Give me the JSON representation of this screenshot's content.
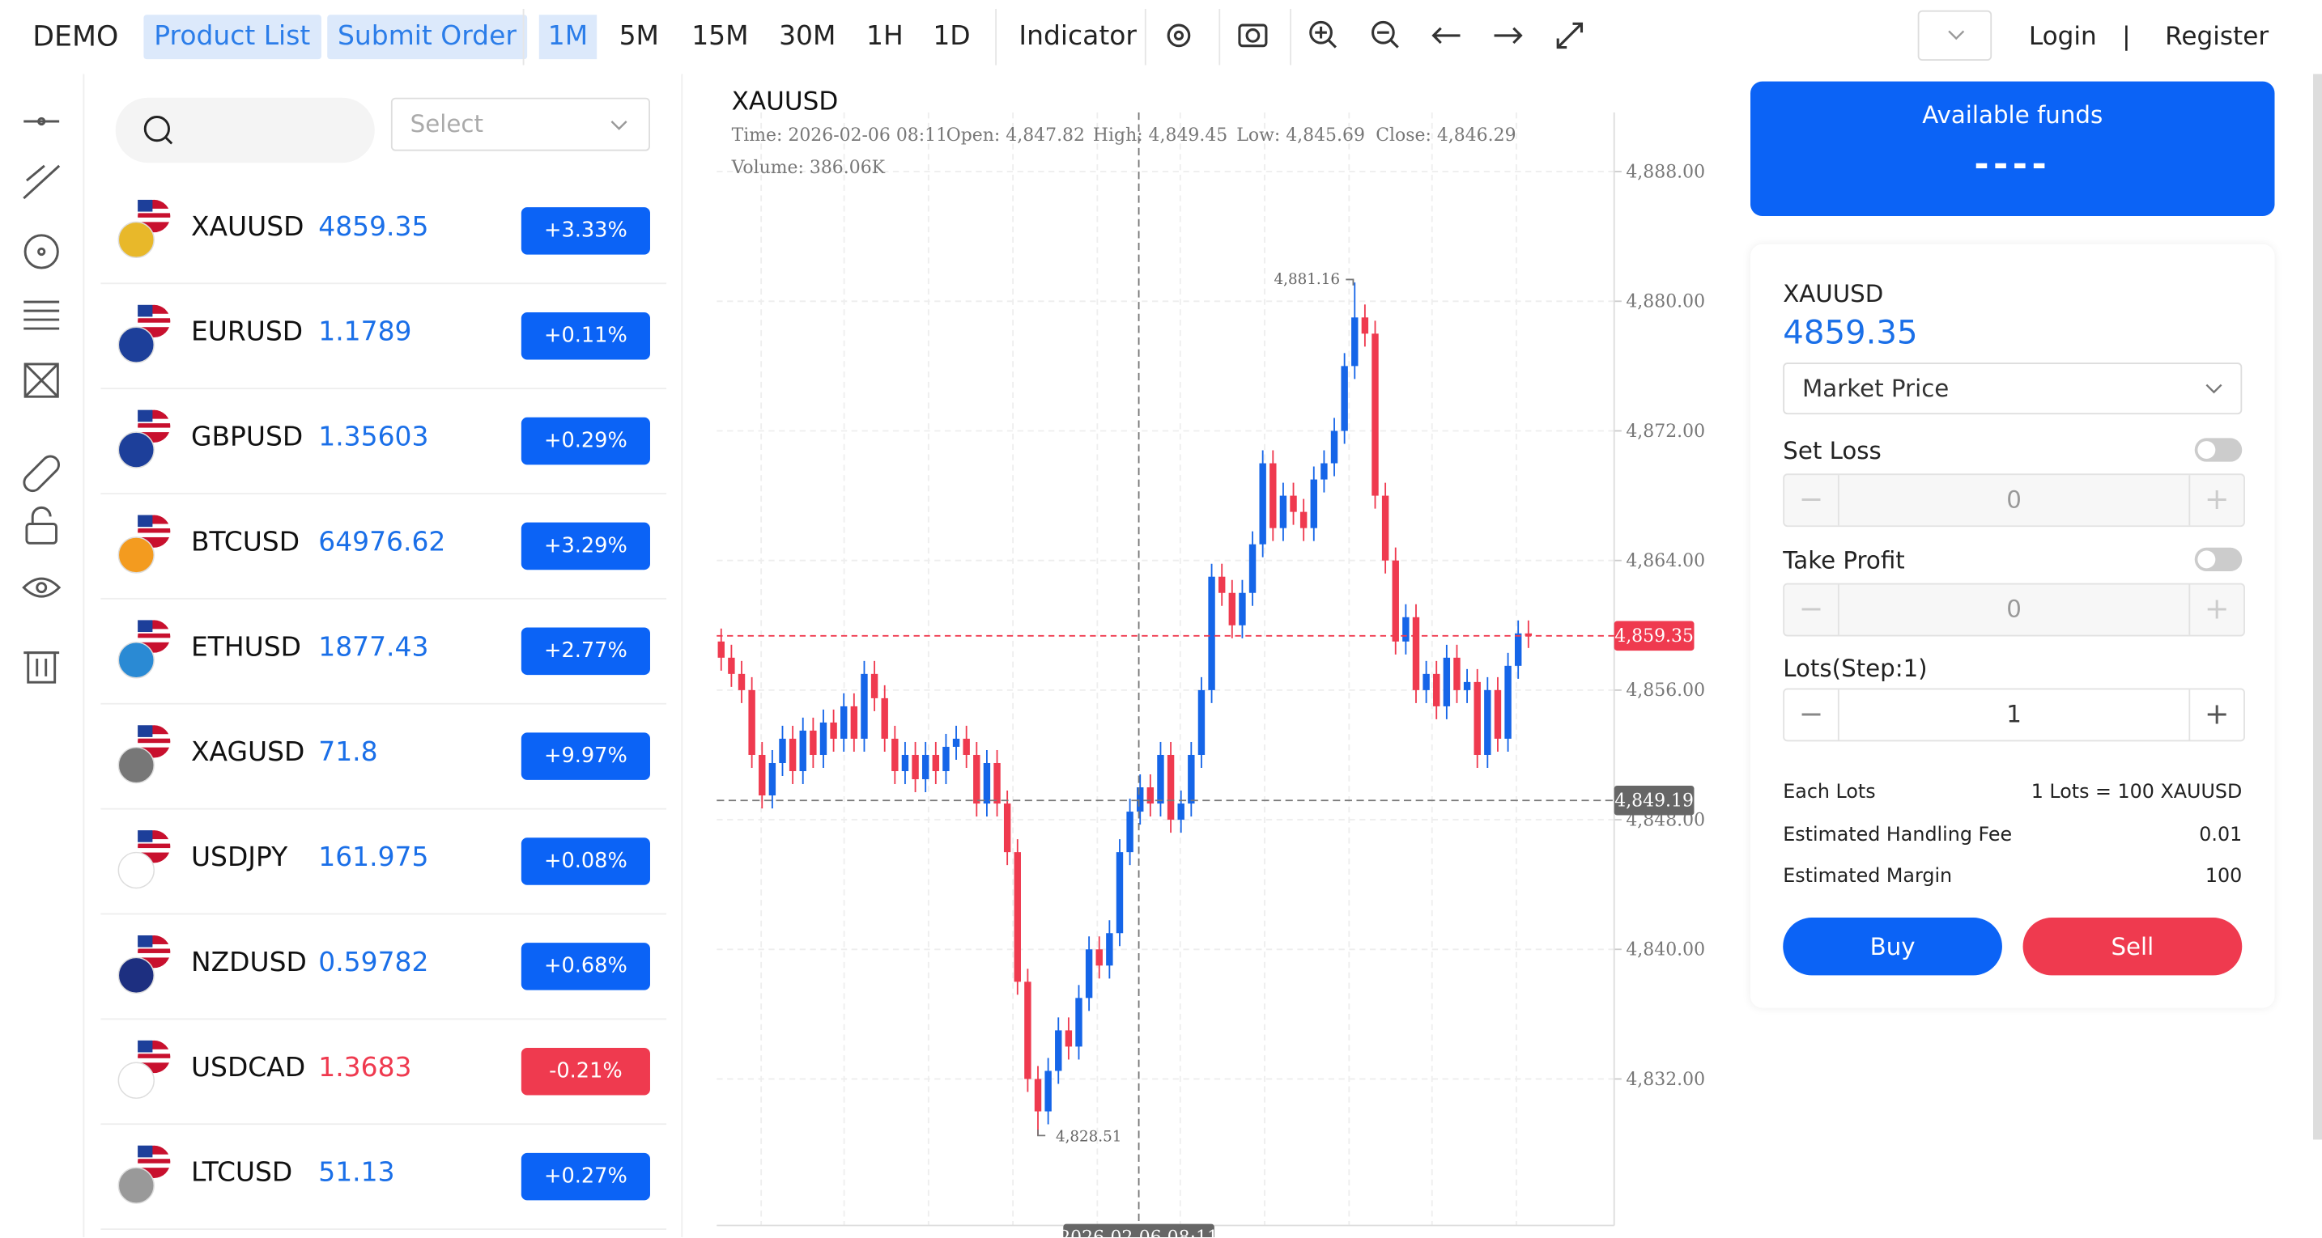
{
  "top_bar": {
    "brand": "DEMO",
    "nav": [
      "Product List",
      "Submit Order"
    ],
    "intervals": [
      "1M",
      "5M",
      "15M",
      "30M",
      "1H",
      "1D"
    ],
    "indicator": "Indicator",
    "login": "Login",
    "separator": "|",
    "register": "Register"
  },
  "search": {
    "select_placeholder": "Select"
  },
  "products": [
    {
      "symbol": "XAUUSD",
      "price": "4859.35",
      "change": "+3.33%",
      "direction": "up"
    },
    {
      "symbol": "EURUSD",
      "price": "1.1789",
      "change": "+0.11%",
      "direction": "up"
    },
    {
      "symbol": "GBPUSD",
      "price": "1.35603",
      "change": "+0.29%",
      "direction": "up"
    },
    {
      "symbol": "BTCUSD",
      "price": "64976.62",
      "change": "+3.29%",
      "direction": "up"
    },
    {
      "symbol": "ETHUSD",
      "price": "1877.43",
      "change": "+2.77%",
      "direction": "up"
    },
    {
      "symbol": "XAGUSD",
      "price": "71.8",
      "change": "+9.97%",
      "direction": "up"
    },
    {
      "symbol": "USDJPY",
      "price": "161.975",
      "change": "+0.08%",
      "direction": "up"
    },
    {
      "symbol": "NZDUSD",
      "price": "0.59782",
      "change": "+0.68%",
      "direction": "up"
    },
    {
      "symbol": "USDCAD",
      "price": "1.3683",
      "change": "-0.21%",
      "direction": "down"
    },
    {
      "symbol": "LTCUSD",
      "price": "51.13",
      "change": "+0.27%",
      "direction": "up"
    }
  ],
  "chart_data": {
    "type": "candlestick",
    "title": "XAUUSD",
    "info": [
      "Time: 2026-02-06 08:11",
      "Open: 4,847.82",
      "High: 4,849.45",
      "Low: 4,845.69",
      "Close: 4,846.29",
      "Volume: 386.06K"
    ],
    "up_color": "#1565e8",
    "down_color": "#ef3a4f",
    "ylim": [
      4822.96,
      4891.65
    ],
    "yticks": [
      {
        "value": 4832,
        "label": "4,832.00"
      },
      {
        "value": 4840,
        "label": "4,840.00"
      },
      {
        "value": 4848,
        "label": "4,848.00"
      },
      {
        "value": 4856,
        "label": "4,856.00"
      },
      {
        "value": 4864,
        "label": "4,864.00"
      },
      {
        "value": 4872,
        "label": "4,872.00"
      },
      {
        "value": 4880,
        "label": "4,880.00"
      },
      {
        "value": 4888,
        "label": "4,888.00"
      }
    ],
    "grid": true,
    "crosshair_time": "2026-02-06 08:11",
    "last_price": {
      "value": 4859.35,
      "label": "4,859.35"
    },
    "crosshair_price": {
      "value": 4849.19,
      "label": "4,849.19"
    },
    "high_mark": {
      "value": 4881.16,
      "label": "4,881.16"
    },
    "low_mark": {
      "value": 4828.51,
      "label": "4,828.51"
    },
    "candles": [
      [
        4859.0,
        4859.8,
        4857.2,
        4858.0
      ],
      [
        4858.0,
        4858.8,
        4856.2,
        4857.0
      ],
      [
        4857.0,
        4857.8,
        4855.2,
        4856.0
      ],
      [
        4856.0,
        4856.8,
        4851.2,
        4852.0
      ],
      [
        4852.0,
        4852.8,
        4848.7,
        4849.5
      ],
      [
        4849.5,
        4852.3,
        4848.7,
        4851.5
      ],
      [
        4851.5,
        4853.8,
        4850.7,
        4853.0
      ],
      [
        4853.0,
        4853.8,
        4850.2,
        4851.0
      ],
      [
        4851.0,
        4854.3,
        4850.2,
        4853.5
      ],
      [
        4853.5,
        4854.3,
        4851.2,
        4852.0
      ],
      [
        4852.0,
        4854.8,
        4851.2,
        4854.0
      ],
      [
        4854.0,
        4854.8,
        4852.2,
        4853.0
      ],
      [
        4853.0,
        4855.8,
        4852.2,
        4855.0
      ],
      [
        4855.0,
        4855.8,
        4852.2,
        4853.0
      ],
      [
        4853.0,
        4857.8,
        4852.2,
        4857.0
      ],
      [
        4857.0,
        4857.8,
        4854.7,
        4855.5
      ],
      [
        4855.5,
        4856.3,
        4852.2,
        4853.0
      ],
      [
        4853.0,
        4853.8,
        4850.2,
        4851.0
      ],
      [
        4851.0,
        4852.8,
        4850.2,
        4852.0
      ],
      [
        4852.0,
        4852.8,
        4849.7,
        4850.5
      ],
      [
        4850.5,
        4852.8,
        4849.7,
        4852.0
      ],
      [
        4852.0,
        4852.8,
        4850.2,
        4851.0
      ],
      [
        4851.0,
        4853.3,
        4850.2,
        4852.5
      ],
      [
        4852.5,
        4853.8,
        4851.7,
        4853.0
      ],
      [
        4853.0,
        4853.8,
        4851.2,
        4852.0
      ],
      [
        4852.0,
        4852.8,
        4848.2,
        4849.0
      ],
      [
        4849.0,
        4852.3,
        4848.2,
        4851.5
      ],
      [
        4851.5,
        4852.3,
        4848.2,
        4849.0
      ],
      [
        4849.0,
        4849.8,
        4845.2,
        4846.0
      ],
      [
        4846.0,
        4846.8,
        4837.2,
        4838.0
      ],
      [
        4838.0,
        4838.8,
        4831.2,
        4832.0
      ],
      [
        4832.0,
        4832.8,
        4828.51,
        4830.0
      ],
      [
        4830.0,
        4833.3,
        4829.2,
        4832.5
      ],
      [
        4832.5,
        4835.8,
        4831.7,
        4835.0
      ],
      [
        4835.0,
        4835.8,
        4833.2,
        4834.0
      ],
      [
        4834.0,
        4837.8,
        4833.2,
        4837.0
      ],
      [
        4837.0,
        4840.8,
        4836.2,
        4840.0
      ],
      [
        4840.0,
        4840.8,
        4838.2,
        4839.0
      ],
      [
        4839.0,
        4841.8,
        4838.2,
        4841.0
      ],
      [
        4841.0,
        4846.8,
        4840.2,
        4846.0
      ],
      [
        4846.0,
        4849.3,
        4845.2,
        4848.5
      ],
      [
        4848.5,
        4850.8,
        4847.7,
        4850.0
      ],
      [
        4850.0,
        4850.8,
        4848.2,
        4849.0
      ],
      [
        4849.0,
        4852.8,
        4848.2,
        4852.0
      ],
      [
        4852.0,
        4852.8,
        4847.2,
        4848.0
      ],
      [
        4848.0,
        4849.8,
        4847.2,
        4849.0
      ],
      [
        4849.0,
        4852.8,
        4848.2,
        4852.0
      ],
      [
        4852.0,
        4856.8,
        4851.2,
        4856.0
      ],
      [
        4856.0,
        4863.8,
        4855.2,
        4863.0
      ],
      [
        4863.0,
        4863.8,
        4861.2,
        4862.0
      ],
      [
        4862.0,
        4862.8,
        4859.2,
        4860.0
      ],
      [
        4860.0,
        4862.8,
        4859.2,
        4862.0
      ],
      [
        4862.0,
        4865.8,
        4861.2,
        4865.0
      ],
      [
        4865.0,
        4870.8,
        4864.2,
        4870.0
      ],
      [
        4870.0,
        4870.8,
        4865.2,
        4866.0
      ],
      [
        4866.0,
        4868.8,
        4865.2,
        4868.0
      ],
      [
        4868.0,
        4868.8,
        4866.2,
        4867.0
      ],
      [
        4867.0,
        4867.8,
        4865.2,
        4866.0
      ],
      [
        4866.0,
        4869.8,
        4865.2,
        4869.0
      ],
      [
        4869.0,
        4870.8,
        4868.2,
        4870.0
      ],
      [
        4870.0,
        4872.8,
        4869.2,
        4872.0
      ],
      [
        4872.0,
        4876.8,
        4871.2,
        4876.0
      ],
      [
        4876.0,
        4881.16,
        4875.2,
        4879.0
      ],
      [
        4879.0,
        4879.8,
        4877.2,
        4878.0
      ],
      [
        4878.0,
        4878.8,
        4867.2,
        4868.0
      ],
      [
        4868.0,
        4868.8,
        4863.2,
        4864.0
      ],
      [
        4864.0,
        4864.8,
        4858.2,
        4859.0
      ],
      [
        4859.0,
        4861.3,
        4858.2,
        4860.5
      ],
      [
        4860.5,
        4861.3,
        4855.2,
        4856.0
      ],
      [
        4856.0,
        4857.8,
        4855.2,
        4857.0
      ],
      [
        4857.0,
        4857.8,
        4854.2,
        4855.0
      ],
      [
        4855.0,
        4858.8,
        4854.2,
        4858.0
      ],
      [
        4858.0,
        4858.8,
        4855.2,
        4856.0
      ],
      [
        4856.0,
        4857.3,
        4855.2,
        4856.5
      ],
      [
        4856.5,
        4857.3,
        4851.2,
        4852.0
      ],
      [
        4852.0,
        4856.8,
        4851.2,
        4856.0
      ],
      [
        4856.0,
        4856.8,
        4852.2,
        4853.0
      ],
      [
        4853.0,
        4858.3,
        4852.2,
        4857.5
      ],
      [
        4857.5,
        4860.3,
        4856.7,
        4859.5
      ],
      [
        4859.5,
        4860.3,
        4858.6,
        4859.35
      ]
    ]
  },
  "order_panel": {
    "funds_title": "Available funds",
    "funds_value": "----",
    "symbol": "XAUUSD",
    "price": "4859.35",
    "order_type": "Market Price",
    "set_loss": "Set Loss",
    "set_loss_value": "0",
    "take_profit": "Take Profit",
    "take_profit_value": "0",
    "lots_label": "Lots(Step:1)",
    "lots_value": "1",
    "details": [
      {
        "label": "Each Lots",
        "value": "1 Lots = 100 XAUUSD"
      },
      {
        "label": "Estimated Handling Fee",
        "value": "0.01"
      },
      {
        "label": "Estimated Margin",
        "value": "100"
      }
    ],
    "buy": "Buy",
    "sell": "Sell"
  }
}
